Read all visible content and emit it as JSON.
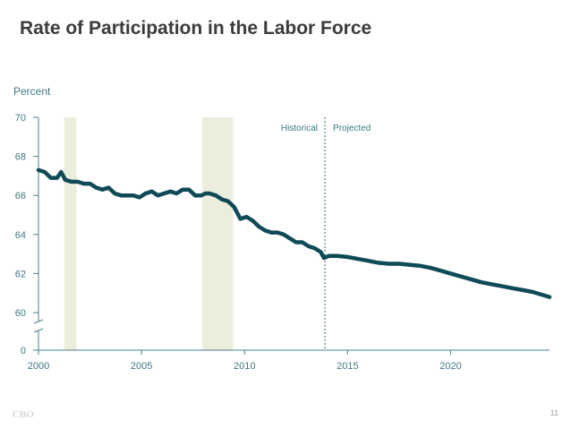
{
  "slide": {
    "title": "Rate of Participation in the Labor Force",
    "footer_logo": "CBO",
    "page_number": "11"
  },
  "colors": {
    "line": "#0f4a57",
    "recession_band": "#eceedd",
    "axis": "#4a7f8c",
    "tick_label": "#3f7886",
    "divider": "#3f6670"
  },
  "chart_data": {
    "type": "line",
    "title": "",
    "ylabel": "Percent",
    "xlabel": "",
    "xlim": [
      2000,
      2024.8
    ],
    "ylim_top": [
      60,
      70
    ],
    "y_ticks": [
      0,
      60,
      62,
      64,
      66,
      68,
      70
    ],
    "x_ticks": [
      2000,
      2005,
      2010,
      2015,
      2020
    ],
    "axis_break": true,
    "grid": false,
    "legend": "none",
    "recession_bands": [
      {
        "start": 2001.25,
        "end": 2001.85
      },
      {
        "start": 2007.95,
        "end": 2009.45
      }
    ],
    "annotations": {
      "divider_x": 2013.9,
      "historical_label": "Historical",
      "projected_label": "Projected"
    },
    "series": [
      {
        "x": [
          2000.0,
          2000.3,
          2000.6,
          2000.9,
          2001.1,
          2001.3,
          2001.6,
          2001.9,
          2002.2,
          2002.5,
          2002.8,
          2003.1,
          2003.4,
          2003.7,
          2004.0,
          2004.3,
          2004.6,
          2004.9,
          2005.2,
          2005.5,
          2005.8,
          2006.1,
          2006.4,
          2006.7,
          2007.0,
          2007.3,
          2007.6,
          2007.9,
          2008.1,
          2008.3,
          2008.6,
          2008.9,
          2009.2,
          2009.5,
          2009.8,
          2010.1,
          2010.4,
          2010.7,
          2011.0,
          2011.3,
          2011.6,
          2011.9,
          2012.2,
          2012.5,
          2012.8,
          2013.1,
          2013.4,
          2013.7,
          2013.85,
          2014.1,
          2014.5,
          2015.0,
          2015.5,
          2016.0,
          2016.5,
          2017.0,
          2017.5,
          2018.0,
          2018.5,
          2019.0,
          2019.5,
          2020.0,
          2020.5,
          2021.0,
          2021.5,
          2022.0,
          2022.5,
          2023.0,
          2023.5,
          2024.0,
          2024.8
        ],
        "y": [
          67.3,
          67.2,
          66.9,
          66.9,
          67.2,
          66.8,
          66.7,
          66.7,
          66.6,
          66.6,
          66.4,
          66.3,
          66.4,
          66.1,
          66.0,
          66.0,
          66.0,
          65.9,
          66.1,
          66.2,
          66.0,
          66.1,
          66.2,
          66.1,
          66.3,
          66.3,
          66.0,
          66.0,
          66.1,
          66.1,
          66.0,
          65.8,
          65.7,
          65.4,
          64.8,
          64.9,
          64.7,
          64.4,
          64.2,
          64.1,
          64.1,
          64.0,
          63.8,
          63.6,
          63.6,
          63.4,
          63.3,
          63.1,
          62.8,
          62.9,
          62.9,
          62.85,
          62.75,
          62.65,
          62.55,
          62.5,
          62.5,
          62.45,
          62.4,
          62.3,
          62.15,
          62.0,
          61.85,
          61.7,
          61.55,
          61.45,
          61.35,
          61.25,
          61.15,
          61.05,
          60.8
        ]
      }
    ]
  }
}
